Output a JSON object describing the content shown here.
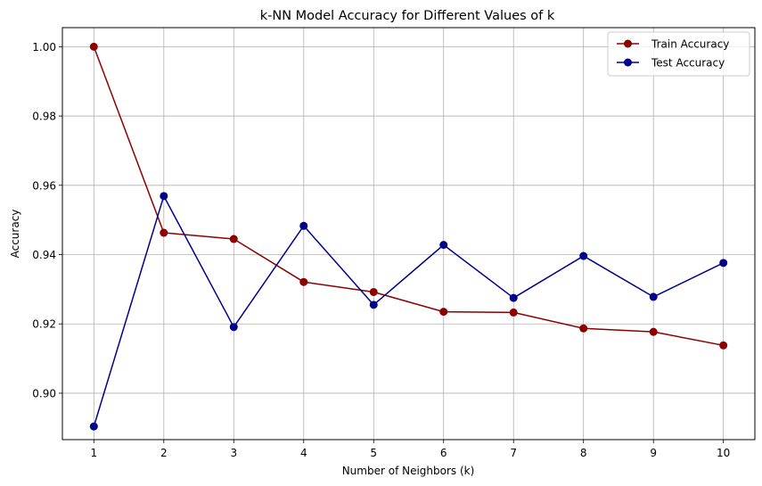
{
  "chart_data": {
    "type": "line",
    "title": "k-NN Model Accuracy for Different Values of k",
    "xlabel": "Number of Neighbors (k)",
    "ylabel": "Accuracy",
    "x": [
      1,
      2,
      3,
      4,
      5,
      6,
      7,
      8,
      9,
      10
    ],
    "xlim": [
      0.55,
      10.45
    ],
    "ylim": [
      0.8866,
      1.0055
    ],
    "xticks": [
      1,
      2,
      3,
      4,
      5,
      6,
      7,
      8,
      9,
      10
    ],
    "yticks": [
      0.9,
      0.92,
      0.94,
      0.96,
      0.98,
      1.0
    ],
    "ytick_labels": [
      "0.90",
      "0.92",
      "0.94",
      "0.96",
      "0.98",
      "1.00"
    ],
    "grid": true,
    "legend": "top-right",
    "series": [
      {
        "name": "Train Accuracy",
        "color": "#8b0000",
        "values": [
          1.0,
          0.9463,
          0.9445,
          0.9321,
          0.9292,
          0.9235,
          0.9233,
          0.9187,
          0.9177,
          0.9138
        ]
      },
      {
        "name": "Test Accuracy",
        "color": "#00008b",
        "values": [
          0.8904,
          0.9569,
          0.9191,
          0.9483,
          0.9255,
          0.9428,
          0.9275,
          0.9396,
          0.9278,
          0.9376
        ]
      }
    ]
  }
}
